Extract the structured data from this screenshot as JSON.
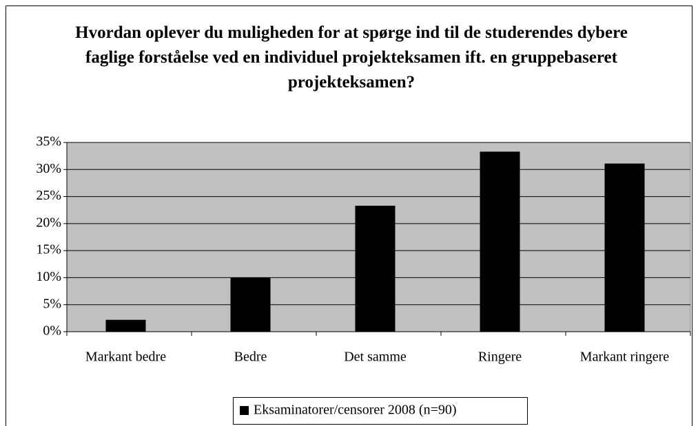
{
  "chart_data": {
    "type": "bar",
    "title": "Hvordan oplever du muligheden for at spørge ind til de studerendes dybere faglige forståelse ved en individuel projekteksamen ift. en gruppebaseret projekteksamen?",
    "categories": [
      "Markant bedre",
      "Bedre",
      "Det samme",
      "Ringere",
      "Markant ringere"
    ],
    "series": [
      {
        "name": "Eksaminatorer/censorer 2008 (n=90)",
        "color": "#000000",
        "values": [
          2.2,
          10,
          23.3,
          33.3,
          31.1
        ]
      }
    ],
    "ylim": [
      0,
      35
    ],
    "yticks": [
      {
        "value": 0,
        "label": "0%"
      },
      {
        "value": 5,
        "label": "5%"
      },
      {
        "value": 10,
        "label": "10%"
      },
      {
        "value": 15,
        "label": "15%"
      },
      {
        "value": 20,
        "label": "20%"
      },
      {
        "value": 25,
        "label": "25%"
      },
      {
        "value": 30,
        "label": "30%"
      },
      {
        "value": 35,
        "label": "35%"
      }
    ],
    "grid": true,
    "legend": "bottom"
  }
}
